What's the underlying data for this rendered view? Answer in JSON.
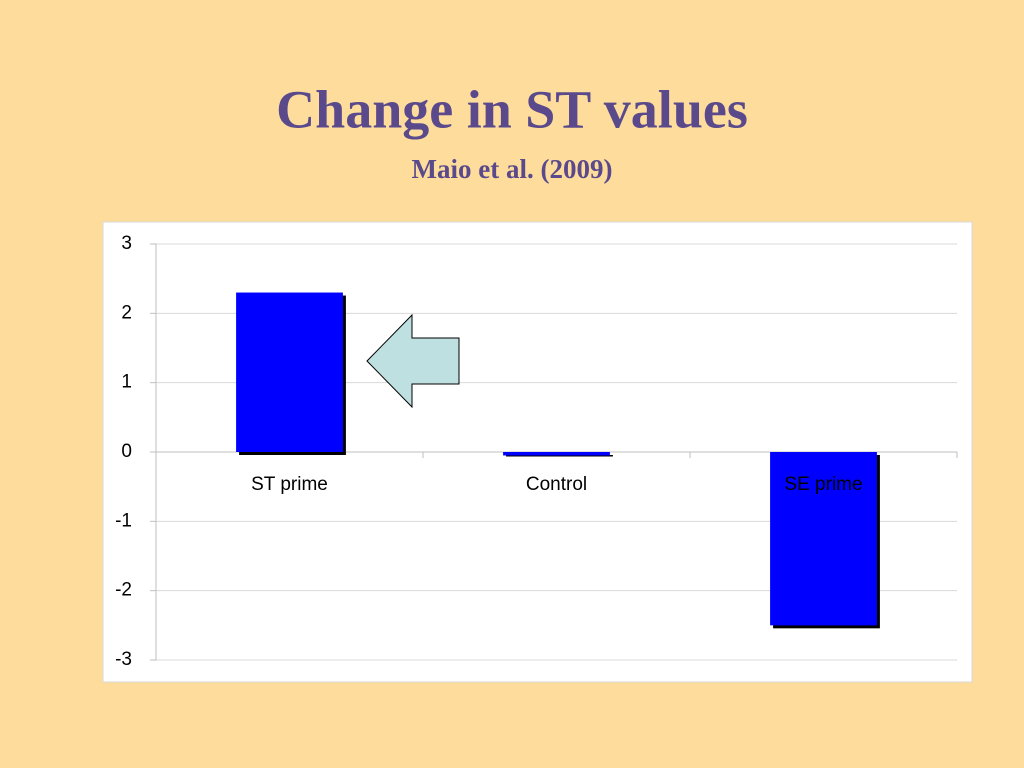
{
  "chart_data": {
    "type": "bar",
    "title": "Change in ST values",
    "subtitle": "Maio et al. (2009)",
    "categories": [
      "ST prime",
      "Control",
      "SE prime"
    ],
    "values": [
      2.3,
      -0.05,
      -2.5
    ],
    "color": "#0000ff",
    "ylim": [
      -3,
      3
    ],
    "yticks": [
      -3,
      -2,
      -1,
      0,
      1,
      2,
      3
    ],
    "grid": true
  }
}
